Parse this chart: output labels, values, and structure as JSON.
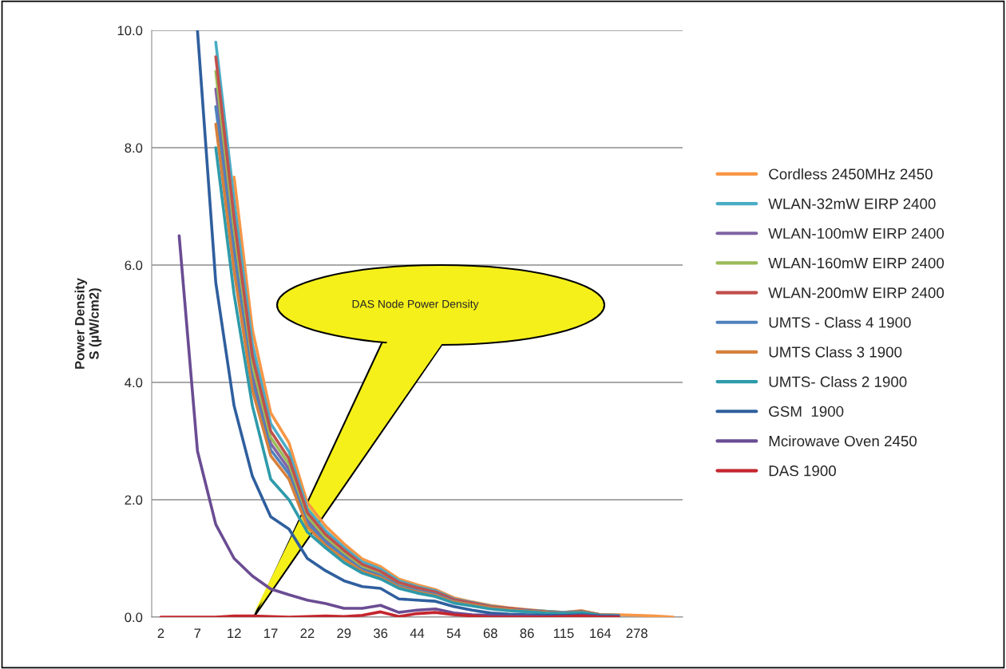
{
  "chart_data": {
    "type": "line",
    "ylabel": "Power Density\nS (µW/cm2)",
    "annotations": [
      "DAS Node Power Density"
    ],
    "categories": [
      "2",
      null,
      "7",
      null,
      "12",
      null,
      "17",
      null,
      "22",
      null,
      "29",
      null,
      "36",
      null,
      "44",
      null,
      "54",
      null,
      "68",
      null,
      "86",
      null,
      "115",
      null,
      "164",
      null,
      "278",
      null,
      null
    ],
    "ylim": [
      0,
      10
    ],
    "yticks": [
      {
        "value": 0,
        "label": "0.0"
      },
      {
        "value": 2,
        "label": "2.0"
      },
      {
        "value": 4,
        "label": "4.0"
      },
      {
        "value": 6,
        "label": "6.0"
      },
      {
        "value": 8,
        "label": "8.0"
      },
      {
        "value": 10,
        "label": "10.0"
      }
    ],
    "grid": "y",
    "legend": "right",
    "series": [
      {
        "name": "Cordless 2450MHz 2450",
        "color": "#f79646",
        "values": [
          null,
          null,
          null,
          null,
          7.5,
          4.9,
          3.48,
          2.97,
          1.95,
          1.55,
          1.25,
          0.99,
          0.86,
          0.65,
          0.55,
          0.47,
          0.33,
          0.26,
          0.2,
          0.16,
          0.13,
          0.1,
          0.08,
          0.11,
          0.04,
          0.04,
          0.03,
          0.02,
          0.0
        ]
      },
      {
        "name": "WLAN-32mW EIRP 2400",
        "color": "#4bacc6",
        "values": [
          null,
          null,
          null,
          9.8,
          7.1,
          4.65,
          3.3,
          2.82,
          1.85,
          1.47,
          1.19,
          0.94,
          0.82,
          0.62,
          0.52,
          0.45,
          0.31,
          0.25,
          0.19,
          0.15,
          0.12,
          0.1,
          0.08,
          0.1,
          0.04,
          0.03,
          null,
          null,
          null
        ]
      },
      {
        "name": "WLAN-100mW EIRP 2400",
        "color": "#8064a2",
        "values": [
          null,
          null,
          null,
          9.0,
          6.4,
          4.15,
          2.96,
          2.52,
          1.66,
          1.32,
          1.06,
          0.84,
          0.73,
          0.55,
          0.47,
          0.4,
          0.28,
          0.22,
          0.17,
          0.14,
          0.11,
          0.09,
          0.07,
          0.09,
          0.03,
          0.03,
          null,
          null,
          null
        ]
      },
      {
        "name": "WLAN-160mW EIRP 2400",
        "color": "#9bbb59",
        "values": [
          null,
          null,
          null,
          9.3,
          6.6,
          4.3,
          3.06,
          2.61,
          1.72,
          1.36,
          1.1,
          0.87,
          0.76,
          0.57,
          0.48,
          0.41,
          0.29,
          0.23,
          0.18,
          0.14,
          0.11,
          0.09,
          0.07,
          0.1,
          0.04,
          0.03,
          null,
          null,
          null
        ]
      },
      {
        "name": "WLAN-200mW EIRP 2400",
        "color": "#c0504d",
        "values": [
          null,
          null,
          null,
          9.55,
          6.8,
          4.45,
          3.17,
          2.7,
          1.78,
          1.41,
          1.14,
          0.9,
          0.78,
          0.59,
          0.5,
          0.43,
          0.3,
          0.24,
          0.18,
          0.15,
          0.12,
          0.09,
          0.07,
          0.1,
          0.04,
          0.03,
          null,
          null,
          null
        ]
      },
      {
        "name": "UMTS - Class 4 1900",
        "color": "#4f81bd",
        "values": [
          null,
          null,
          null,
          8.7,
          6.2,
          4.0,
          2.85,
          2.44,
          1.6,
          1.27,
          1.03,
          0.81,
          0.71,
          0.53,
          0.45,
          0.39,
          0.27,
          0.21,
          0.16,
          0.13,
          0.11,
          0.08,
          0.07,
          0.09,
          0.03,
          0.03,
          null,
          null,
          null
        ]
      },
      {
        "name": "UMTS Class 3 1900",
        "color": "#d6803c",
        "values": [
          null,
          null,
          null,
          8.4,
          5.9,
          3.87,
          2.75,
          2.35,
          1.54,
          1.22,
          0.99,
          0.78,
          0.68,
          0.51,
          0.43,
          0.37,
          0.26,
          0.21,
          0.16,
          0.13,
          0.1,
          0.08,
          0.06,
          0.09,
          0.03,
          0.02,
          null,
          null,
          null
        ]
      },
      {
        "name": "UMTS- Class 2 1900",
        "color": "#2e9aaa",
        "values": [
          null,
          null,
          null,
          8.0,
          5.5,
          3.6,
          2.35,
          2.0,
          1.45,
          1.18,
          0.93,
          0.75,
          0.65,
          0.49,
          0.41,
          0.35,
          0.24,
          0.19,
          0.14,
          0.11,
          0.09,
          0.07,
          0.06,
          0.08,
          0.03,
          0.02,
          null,
          null,
          null
        ]
      },
      {
        "name": "GSM  1900",
        "color": "#2f5f9e",
        "values": [
          null,
          null,
          10.0,
          5.7,
          3.6,
          2.4,
          1.71,
          1.5,
          1.0,
          0.79,
          0.62,
          0.52,
          0.49,
          0.31,
          0.29,
          0.27,
          0.18,
          0.12,
          0.07,
          0.05,
          0.04,
          0.03,
          0.03,
          0.04,
          0.02,
          0.01,
          null,
          null,
          null
        ]
      },
      {
        "name": "Mcirowave Oven 2450",
        "color": "#6a4c93",
        "values": [
          null,
          6.5,
          2.83,
          1.58,
          1.0,
          0.7,
          0.48,
          0.38,
          0.29,
          0.23,
          0.15,
          0.15,
          0.2,
          0.08,
          0.12,
          0.14,
          0.07,
          0.04,
          0.03,
          0.02,
          0.02,
          0.01,
          0.01,
          0.03,
          0.01,
          0.01,
          null,
          null,
          null
        ]
      },
      {
        "name": "DAS 1900",
        "color": "#c4262e",
        "values": [
          0.0,
          0.0,
          0.0,
          0.0,
          0.02,
          0.02,
          0.01,
          0.0,
          0.01,
          0.02,
          0.01,
          0.03,
          0.09,
          0.01,
          0.06,
          0.08,
          0.04,
          0.02,
          0.0,
          0.0,
          0.0,
          0.0,
          0.01,
          0.02,
          0.0,
          0.0,
          null,
          null,
          null
        ]
      }
    ]
  }
}
